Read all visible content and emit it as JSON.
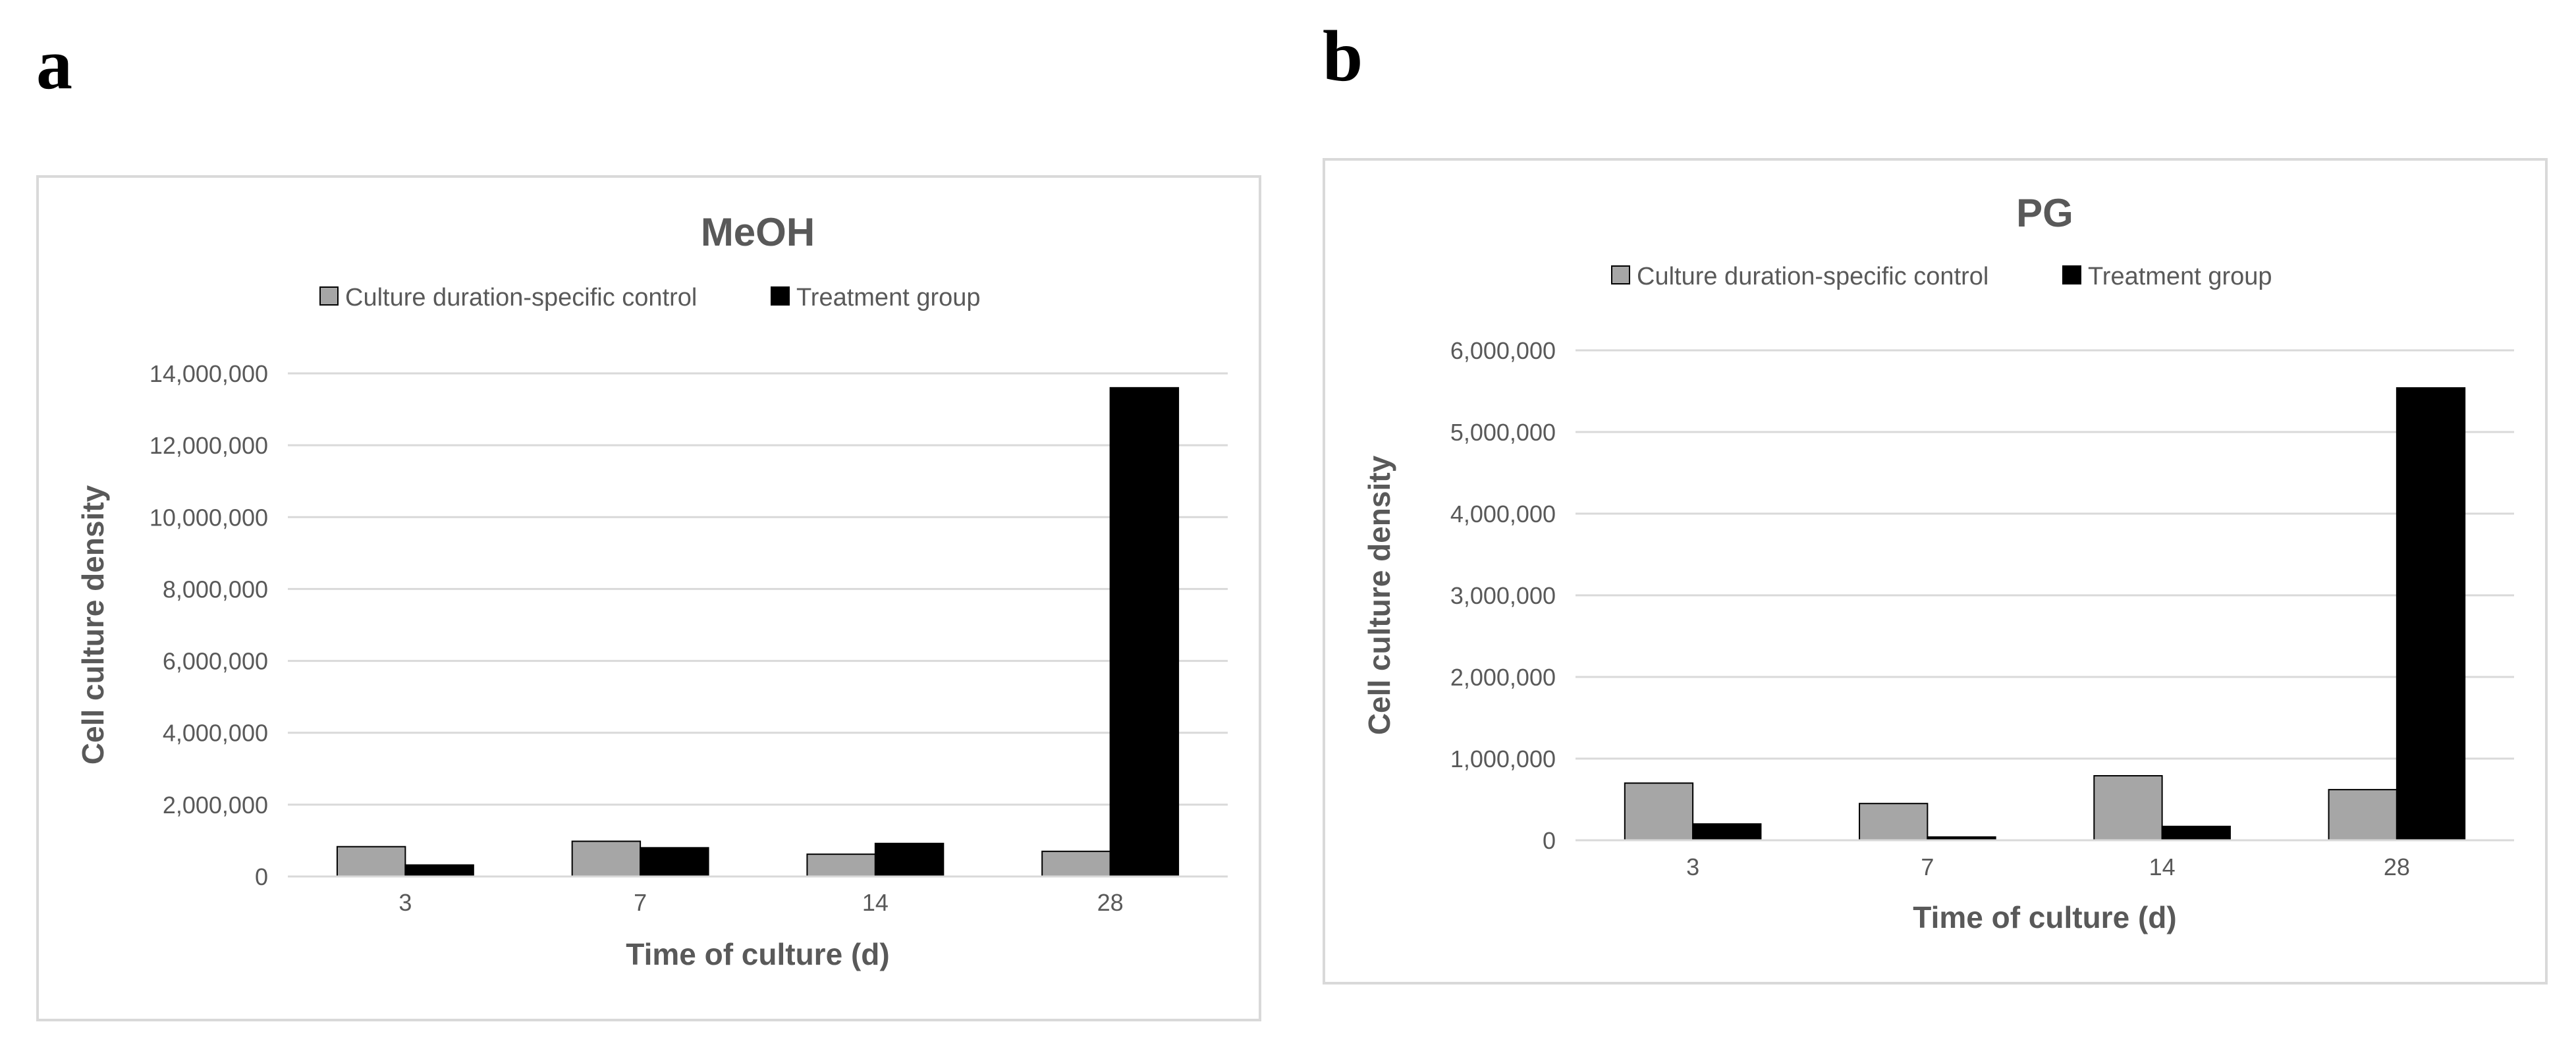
{
  "panel_labels": [
    "a",
    "b"
  ],
  "colors": {
    "control": "#a6a6a6",
    "treatment": "#000000",
    "grid": "#d9d9d9",
    "text": "#595959"
  },
  "chart_data": [
    {
      "type": "bar",
      "title": "MeOH",
      "xlabel": "Time of culture (d)",
      "ylabel": "Cell culture density",
      "categories": [
        "3",
        "7",
        "14",
        "28"
      ],
      "series": [
        {
          "name": "Culture duration-specific control",
          "values": [
            830000,
            980000,
            620000,
            700000
          ]
        },
        {
          "name": "Treatment group",
          "values": [
            320000,
            800000,
            920000,
            13600000
          ]
        }
      ],
      "ylim": [
        0,
        14000000
      ],
      "yticks": [
        0,
        2000000,
        4000000,
        6000000,
        8000000,
        10000000,
        12000000,
        14000000
      ],
      "ytick_labels": [
        "0",
        "2,000,000",
        "4,000,000",
        "6,000,000",
        "8,000,000",
        "10,000,000",
        "12,000,000",
        "14,000,000"
      ],
      "grid": true,
      "legend": "top"
    },
    {
      "type": "bar",
      "title": "PG",
      "xlabel": "Time of culture (d)",
      "ylabel": "Cell culture density",
      "categories": [
        "3",
        "7",
        "14",
        "28"
      ],
      "series": [
        {
          "name": "Culture duration-specific control",
          "values": [
            700000,
            450000,
            790000,
            620000
          ]
        },
        {
          "name": "Treatment group",
          "values": [
            200000,
            40000,
            170000,
            5540000
          ]
        }
      ],
      "ylim": [
        0,
        6000000
      ],
      "yticks": [
        0,
        1000000,
        2000000,
        3000000,
        4000000,
        5000000,
        6000000
      ],
      "ytick_labels": [
        "0",
        "1,000,000",
        "2,000,000",
        "3,000,000",
        "4,000,000",
        "5,000,000",
        "6,000,000"
      ],
      "grid": true,
      "legend": "top"
    }
  ]
}
